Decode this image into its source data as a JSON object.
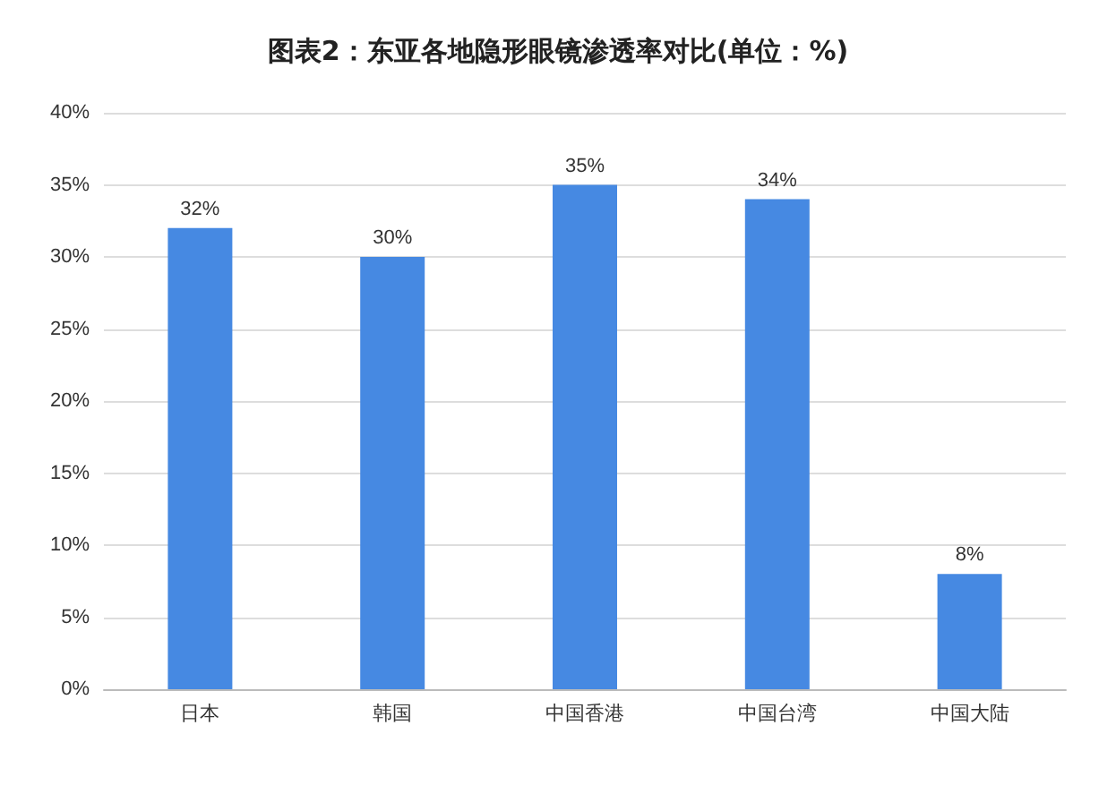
{
  "chart_data": {
    "type": "bar",
    "title": "图表2：东亚各地隐形眼镜渗透率对比(单位：%)",
    "categories": [
      "日本",
      "韩国",
      "中国香港",
      "中国台湾",
      "中国大陆"
    ],
    "values": [
      32,
      30,
      35,
      34,
      8
    ],
    "value_labels": [
      "32%",
      "30%",
      "35%",
      "34%",
      "8%"
    ],
    "color": "#4689e2",
    "ylim": [
      0,
      40
    ],
    "yticks": [
      {
        "value": 0,
        "label": "0%"
      },
      {
        "value": 5,
        "label": "5%"
      },
      {
        "value": 10,
        "label": "10%"
      },
      {
        "value": 15,
        "label": "15%"
      },
      {
        "value": 20,
        "label": "20%"
      },
      {
        "value": 25,
        "label": "25%"
      },
      {
        "value": 30,
        "label": "30%"
      },
      {
        "value": 35,
        "label": "35%"
      },
      {
        "value": 40,
        "label": "40%"
      }
    ],
    "grid": "y"
  }
}
